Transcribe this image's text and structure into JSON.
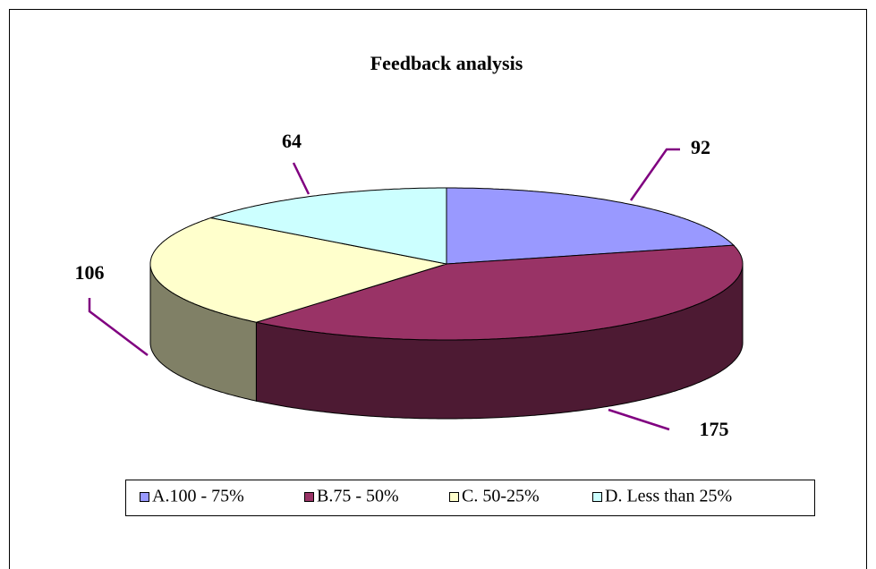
{
  "chart_data": {
    "type": "pie3d",
    "title": "Feedback analysis",
    "categories": [
      "A.100 - 75%",
      "B.75 - 50%",
      "C. 50-25%",
      "D. Less than 25%"
    ],
    "values": [
      92,
      175,
      106,
      64
    ],
    "colors": [
      "#9999ff",
      "#993366",
      "#ffffcc",
      "#ccffff"
    ],
    "legend": "bottom"
  }
}
